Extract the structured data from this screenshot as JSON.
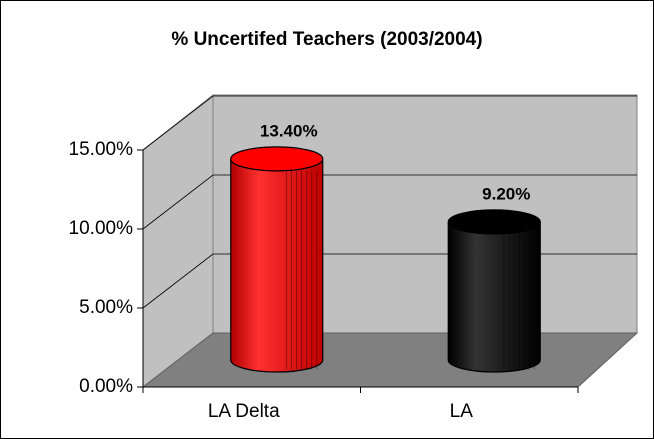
{
  "chart_data": {
    "type": "bar3d",
    "title": "% Uncertifed Teachers (2003/2004)",
    "categories": [
      "LA Delta",
      "LA"
    ],
    "values": [
      13.4,
      9.2
    ],
    "value_labels": [
      "13.40%",
      "9.20%"
    ],
    "colors": [
      "#ff0000",
      "#000000"
    ],
    "ylim": [
      0,
      15
    ],
    "yticks": [
      {
        "value": 0,
        "label": "0.00%"
      },
      {
        "value": 5,
        "label": "5.00%"
      },
      {
        "value": 10,
        "label": "10.00%"
      },
      {
        "value": 15,
        "label": "15.00%"
      }
    ],
    "grid": true
  }
}
